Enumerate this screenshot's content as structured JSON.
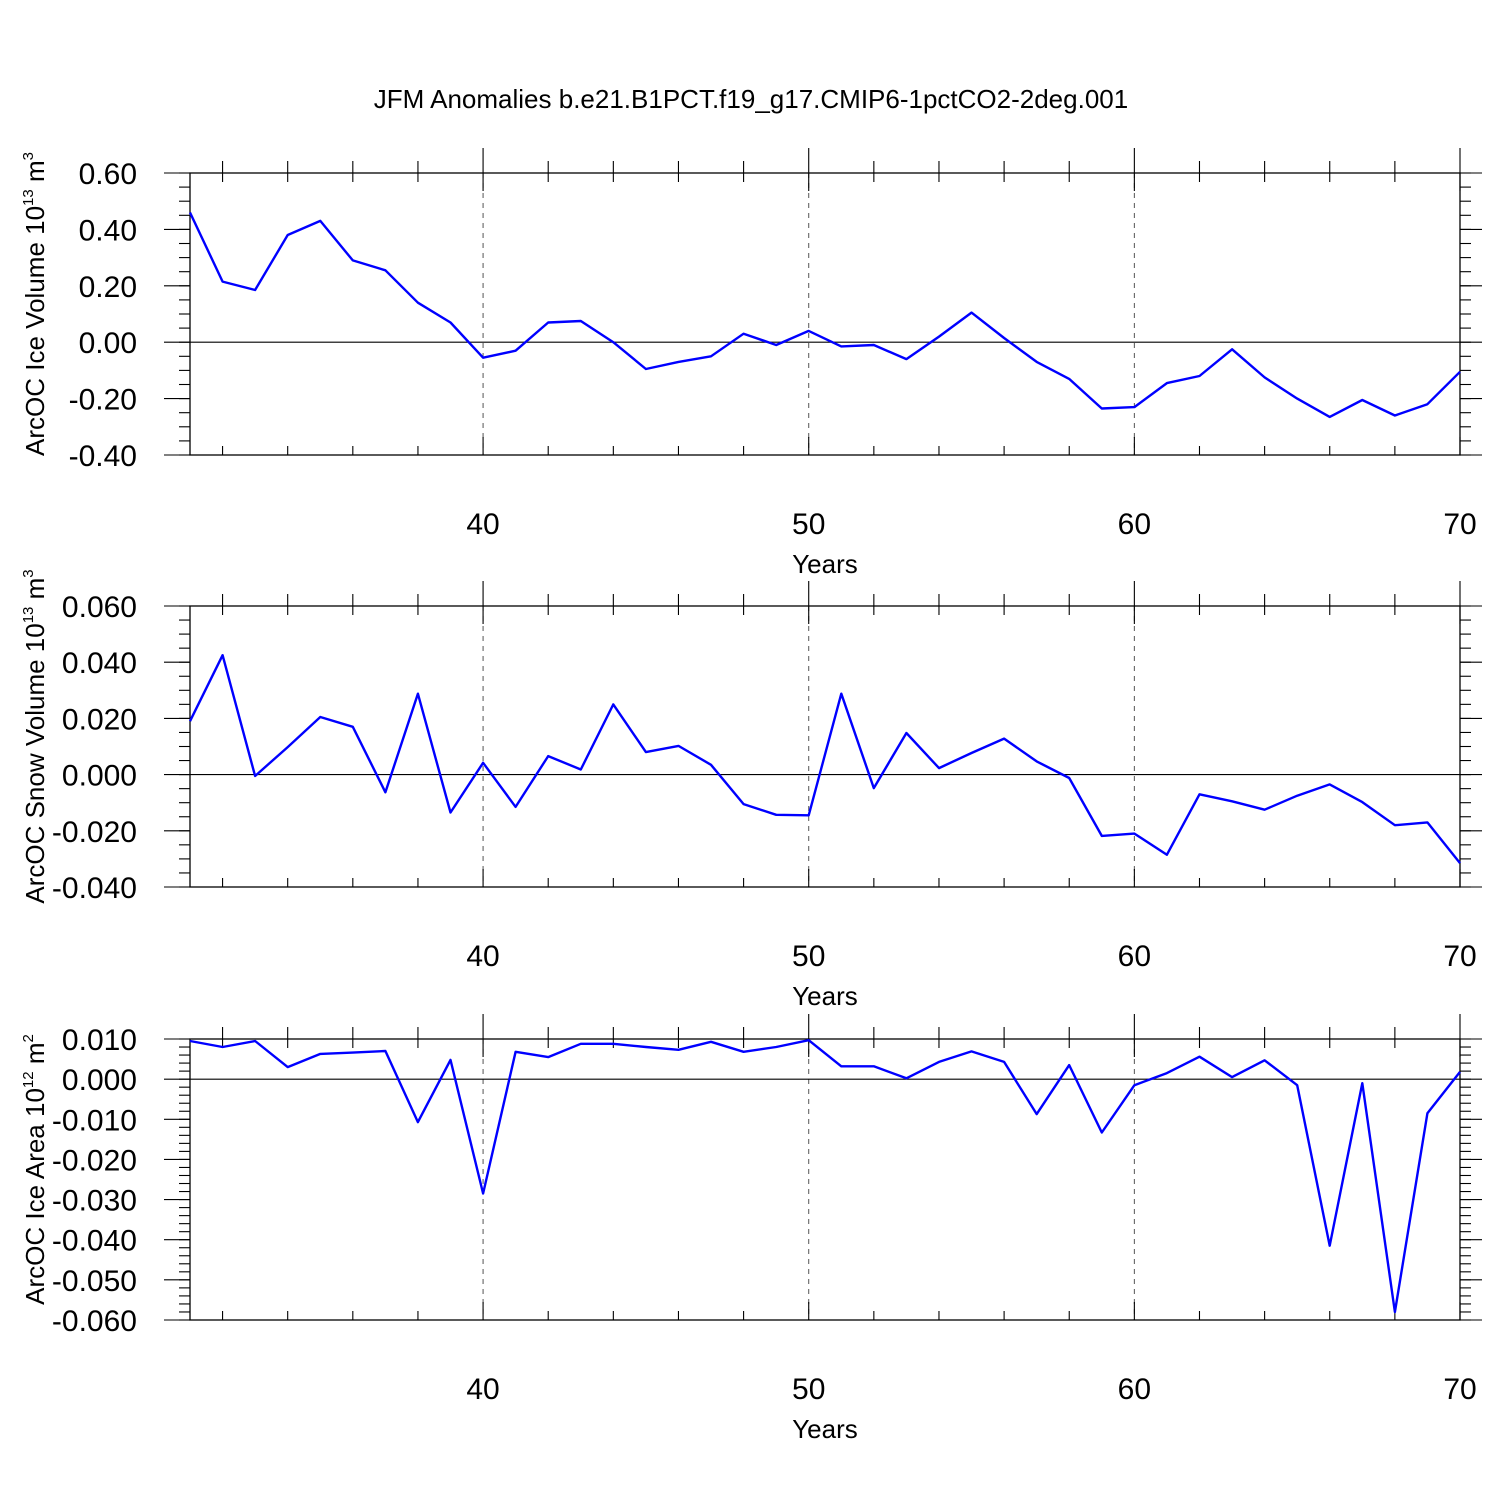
{
  "figure": {
    "title": "JFM Anomalies b.e21.B1PCT.f19_g17.CMIP6-1pctCO2-2deg.001"
  },
  "chart_data": [
    {
      "type": "line",
      "xlabel": "Years",
      "ylabel": "ArcOC Ice Volume 10",
      "ylabel_exp": "13",
      "ylabel_unit": " m",
      "ylabel_unit_exp": "3",
      "xlim": [
        31,
        70
      ],
      "ylim": [
        -0.4,
        0.6
      ],
      "xticks": [
        40,
        50,
        60,
        70
      ],
      "yticks": [
        0.6,
        0.4,
        0.2,
        0.0,
        -0.2,
        -0.4
      ],
      "ytick_labels": [
        "0.60",
        "0.40",
        "0.20",
        "0.00",
        "-0.20",
        "-0.40"
      ],
      "y_minor_step": 0.05,
      "grid": "dashed vertical at 40, 50, 60",
      "color": "#0000ff",
      "series": [
        {
          "x": [
            31,
            32,
            33,
            34,
            35,
            36,
            37,
            38,
            39,
            40,
            41,
            42,
            43,
            44,
            45,
            46,
            47,
            48,
            49,
            50,
            51,
            52,
            53,
            54,
            55,
            56,
            57,
            58,
            59,
            60,
            61,
            62,
            63,
            64,
            65,
            66,
            67,
            68,
            69,
            70
          ],
          "values": [
            0.46,
            0.215,
            0.185,
            0.38,
            0.43,
            0.29,
            0.255,
            0.14,
            0.07,
            -0.055,
            -0.03,
            0.07,
            0.075,
            0.0,
            -0.095,
            -0.07,
            -0.05,
            0.03,
            -0.01,
            0.04,
            -0.015,
            -0.01,
            -0.06,
            0.02,
            0.105,
            0.015,
            -0.07,
            -0.13,
            -0.235,
            -0.23,
            -0.145,
            -0.12,
            -0.025,
            -0.125,
            -0.2,
            -0.265,
            -0.205,
            -0.26,
            -0.22,
            -0.105
          ]
        }
      ]
    },
    {
      "type": "line",
      "xlabel": "Years",
      "ylabel": "ArcOC Snow Volume 10",
      "ylabel_exp": "13",
      "ylabel_unit": " m",
      "ylabel_unit_exp": "3",
      "xlim": [
        31,
        70
      ],
      "ylim": [
        -0.04,
        0.06
      ],
      "xticks": [
        40,
        50,
        60,
        70
      ],
      "yticks": [
        0.06,
        0.04,
        0.02,
        0.0,
        -0.02,
        -0.04
      ],
      "ytick_labels": [
        "0.060",
        "0.040",
        "0.020",
        "0.000",
        "-0.020",
        "-0.040"
      ],
      "y_minor_step": 0.005,
      "grid": "dashed vertical at 40, 50, 60",
      "color": "#0000ff",
      "series": [
        {
          "x": [
            31,
            32,
            33,
            34,
            35,
            36,
            37,
            38,
            39,
            40,
            41,
            42,
            43,
            44,
            45,
            46,
            47,
            48,
            49,
            50,
            51,
            52,
            53,
            54,
            55,
            56,
            57,
            58,
            59,
            60,
            61,
            62,
            63,
            64,
            65,
            66,
            67,
            68,
            69,
            70
          ],
          "values": [
            0.019,
            0.0425,
            -0.0005,
            0.0098,
            0.0205,
            0.017,
            -0.0063,
            0.0288,
            -0.0135,
            0.0042,
            -0.0115,
            0.0066,
            0.0018,
            0.025,
            0.008,
            0.0102,
            0.0035,
            -0.0105,
            -0.0143,
            -0.0145,
            0.0288,
            -0.0048,
            0.0148,
            0.0023,
            0.0077,
            0.0128,
            0.0047,
            -0.0012,
            -0.0218,
            -0.021,
            -0.0285,
            -0.007,
            -0.0095,
            -0.0125,
            -0.0075,
            -0.0035,
            -0.0098,
            -0.018,
            -0.017,
            -0.0315
          ]
        }
      ]
    },
    {
      "type": "line",
      "xlabel": "Years",
      "ylabel": "ArcOC Ice Area 10",
      "ylabel_exp": "12",
      "ylabel_unit": " m",
      "ylabel_unit_exp": "2",
      "xlim": [
        31,
        70
      ],
      "ylim": [
        -0.06,
        0.01
      ],
      "xticks": [
        40,
        50,
        60,
        70
      ],
      "yticks": [
        0.01,
        0.0,
        -0.01,
        -0.02,
        -0.03,
        -0.04,
        -0.05,
        -0.06
      ],
      "ytick_labels": [
        "0.010",
        "0.000",
        "-0.010",
        "-0.020",
        "-0.030",
        "-0.040",
        "-0.050",
        "-0.060"
      ],
      "y_minor_step": 0.002,
      "grid": "dashed vertical at 40, 50, 60",
      "color": "#0000ff",
      "series": [
        {
          "x": [
            31,
            32,
            33,
            34,
            35,
            36,
            37,
            38,
            39,
            40,
            41,
            42,
            43,
            44,
            45,
            46,
            47,
            48,
            49,
            50,
            51,
            52,
            53,
            54,
            55,
            56,
            57,
            58,
            59,
            60,
            61,
            62,
            63,
            64,
            65,
            66,
            67,
            68,
            69,
            70
          ],
          "values": [
            0.0095,
            0.008,
            0.0095,
            0.003,
            0.0063,
            0.0066,
            0.007,
            -0.0107,
            0.0048,
            -0.0285,
            0.0068,
            0.0055,
            0.0088,
            0.0088,
            0.008,
            0.0073,
            0.0093,
            0.0068,
            0.008,
            0.0097,
            0.0032,
            0.0032,
            0.0002,
            0.0043,
            0.0069,
            0.0043,
            -0.0087,
            0.0035,
            -0.0133,
            -0.0015,
            0.0015,
            0.0056,
            0.0005,
            0.0047,
            -0.0015,
            -0.0415,
            -0.001,
            -0.058,
            -0.0085,
            0.0018
          ]
        }
      ]
    }
  ]
}
